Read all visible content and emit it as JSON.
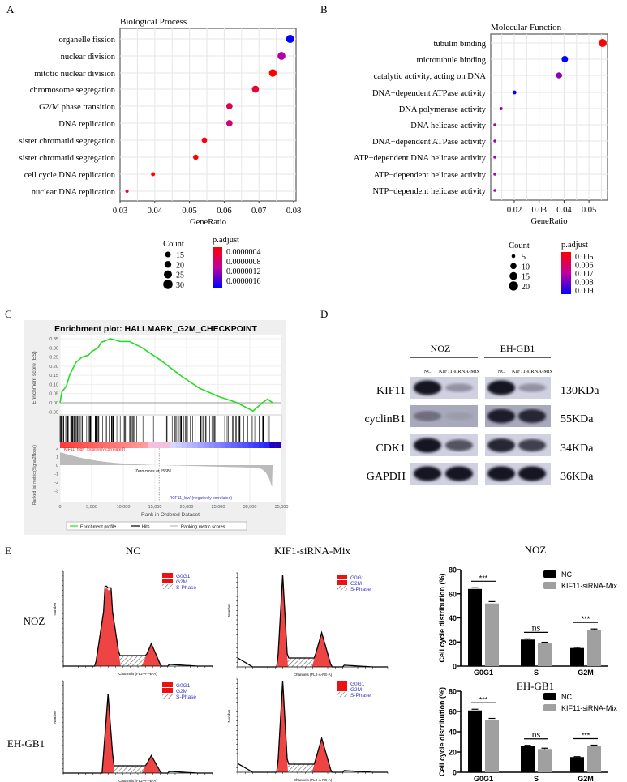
{
  "panel_labels": {
    "a": "A",
    "b": "B",
    "c": "C",
    "d": "D",
    "e": "E"
  },
  "chart_data": [
    {
      "id": "A",
      "type": "scatter",
      "title": "Biological Process",
      "xlabel": "GeneRatio",
      "xlim": [
        0.03,
        0.08
      ],
      "xticks": [
        "0.03",
        "0.04",
        "0.05",
        "0.06",
        "0.07",
        "0.08"
      ],
      "grid": true,
      "terms": [
        "organelle fission",
        "nuclear division",
        "mitotic nuclear division",
        "chromosome segregation",
        "G2/M phase transition",
        "DNA replication",
        "sister chromatid segregation",
        "sister chromatid segregation",
        "cell cycle DNA replication",
        "nuclear DNA replication"
      ],
      "gene_ratio": [
        0.079,
        0.0765,
        0.074,
        0.069,
        0.0615,
        0.0615,
        0.0543,
        0.0518,
        0.0395,
        0.032
      ],
      "count": [
        31,
        30,
        29,
        27,
        24,
        24,
        21,
        20,
        15,
        12
      ],
      "p_adjust": [
        1.6e-06,
        1e-06,
        3e-07,
        5e-07,
        6e-07,
        8e-07,
        4e-07,
        3e-07,
        3e-07,
        6e-07
      ],
      "size_legend": {
        "title": "Count",
        "values": [
          "15",
          "20",
          "25",
          "30"
        ]
      },
      "color_legend": {
        "title": "p.adjust",
        "labels": [
          "0.0000004",
          "0.0000008",
          "0.0000012",
          "0.0000016"
        ],
        "low_color": "#ff0000",
        "mid_color": "#c000a0",
        "high_color": "#0000ff"
      }
    },
    {
      "id": "B",
      "type": "scatter",
      "title": "Molecular Function",
      "xlabel": "GeneRatio",
      "xticks": [
        "0.02",
        "0.03",
        "0.04",
        "0.05"
      ],
      "grid": true,
      "terms": [
        "tubulin binding",
        "microtubule binding",
        "catalytic activity, acting on DNA",
        "DNA−dependent ATPase activity",
        "DNA polymerase activity",
        "DNA helicase activity",
        "DNA−dependent ATPase activity",
        "ATP−dependent DNA helicase activity",
        "ATP−dependent helicase activity",
        "NTP−dependent helicase activity"
      ],
      "gene_ratio": [
        0.0555,
        0.0403,
        0.038,
        0.0201,
        0.0147,
        0.0122,
        0.0122,
        0.0122,
        0.0122,
        0.0122
      ],
      "count": [
        20,
        15,
        14,
        7,
        5,
        4,
        4,
        4,
        4,
        4
      ],
      "p_adjust": [
        0.0045,
        0.0092,
        0.0075,
        0.0092,
        0.0072,
        0.0072,
        0.0072,
        0.0072,
        0.0072,
        0.0072
      ],
      "size_legend": {
        "title": "Count",
        "values": [
          "5",
          "10",
          "15",
          "20"
        ]
      },
      "color_legend": {
        "title": "p.adjust",
        "labels": [
          "0.005",
          "0.006",
          "0.007",
          "0.008",
          "0.009"
        ],
        "low_color": "#ff0000",
        "mid_color": "#c000a0",
        "high_color": "#0000ff"
      }
    },
    {
      "id": "C",
      "type": "line",
      "title": "Enrichment plot: HALLMARK_G2M_CHECKPOINT",
      "ylabel": "Enrichment score (ES)",
      "ylabel2": "Ranked list metric (Signal2Noise)",
      "xlabel": "Rank in Ordered Dataset",
      "xlim": [
        0,
        35000
      ],
      "ylim": [
        -0.05,
        0.35
      ],
      "yticks": [
        "0.35",
        "0.30",
        "0.25",
        "0.20",
        "0.15",
        "0.10",
        "0.05",
        "0.00",
        "-0.05"
      ],
      "y2ticks": [
        "2",
        "1",
        "0",
        "-1",
        "-2",
        "-3"
      ],
      "xticks": [
        "0",
        "5,000",
        "10,000",
        "15,000",
        "20,000",
        "25,000",
        "30,000",
        "35,000"
      ],
      "es_curve": [
        [
          0,
          0
        ],
        [
          300,
          0.06
        ],
        [
          1000,
          0.09
        ],
        [
          1500,
          0.15
        ],
        [
          2500,
          0.22
        ],
        [
          3500,
          0.25
        ],
        [
          4500,
          0.26
        ],
        [
          5000,
          0.28
        ],
        [
          6000,
          0.3
        ],
        [
          6500,
          0.33
        ],
        [
          8000,
          0.35
        ],
        [
          9500,
          0.335
        ],
        [
          11000,
          0.335
        ],
        [
          13000,
          0.3
        ],
        [
          16000,
          0.23
        ],
        [
          19000,
          0.15
        ],
        [
          22000,
          0.08
        ],
        [
          25000,
          0.035
        ],
        [
          28000,
          0.0
        ],
        [
          30500,
          -0.045
        ],
        [
          32000,
          0.0
        ],
        [
          32800,
          0.02
        ],
        [
          33600,
          0.0
        ]
      ],
      "high_label": "'KIF11_high' (positively correlated)",
      "low_label": "'KIF11_low' (negatively correlated)",
      "zero_cross_label": "Zero cross at 15681",
      "zero_cross": 15681,
      "series_colors": {
        "es": "#22dd22",
        "hits": "#000000",
        "metric": "#bbbbbb"
      },
      "legend": [
        "Enrichment profile",
        "Hits",
        "Ranking metric scores"
      ]
    },
    {
      "id": "E-NOZ",
      "type": "bar",
      "title": "NOZ",
      "ylabel": "Cell cycle distribution (%)",
      "ylim": [
        0,
        80
      ],
      "yticks": [
        "0",
        "20",
        "40",
        "60",
        "80"
      ],
      "categories": [
        "G0G1",
        "S",
        "G2M"
      ],
      "series": [
        {
          "name": "NC",
          "values": [
            64,
            22,
            15
          ],
          "errors": [
            1,
            0.6,
            0.6
          ],
          "color": "#000000"
        },
        {
          "name": "KIF11-siRNA-Mix",
          "values": [
            52,
            19,
            30
          ],
          "errors": [
            1.5,
            0.8,
            0.8
          ],
          "color": "#a0a0a0"
        }
      ],
      "significance": [
        "***",
        "ns",
        "***"
      ]
    },
    {
      "id": "E-EH-GB1",
      "type": "bar",
      "title": "EH-GB1",
      "ylabel": "Cell cycle distribution (%)",
      "ylim": [
        0,
        80
      ],
      "yticks": [
        "0",
        "20",
        "40",
        "60",
        "80"
      ],
      "categories": [
        "G0G1",
        "S",
        "G2M"
      ],
      "series": [
        {
          "name": "NC",
          "values": [
            61,
            26,
            15
          ],
          "errors": [
            1.2,
            0.6,
            0.4
          ],
          "color": "#000000"
        },
        {
          "name": "KIF11-siRNA-Mix",
          "values": [
            52,
            23,
            26
          ],
          "errors": [
            1.2,
            0.8,
            0.8
          ],
          "color": "#a0a0a0"
        }
      ],
      "significance": [
        "***",
        "ns",
        "***"
      ]
    }
  ],
  "western_blot": {
    "groups": [
      "NOZ",
      "EH-GB1"
    ],
    "lanes": [
      "NC",
      "KIF11-siRNA-Mix",
      "NC",
      "KIF11-siRNA-Mix"
    ],
    "proteins": [
      {
        "name": "KIF11",
        "size": "130KDa",
        "band_intensity": [
          1,
          0.3,
          1,
          0.3
        ]
      },
      {
        "name": "cyclinB1",
        "size": "55KDa",
        "band_intensity": [
          0.5,
          0.25,
          0.95,
          0.9
        ]
      },
      {
        "name": "CDK1",
        "size": "34KDa",
        "band_intensity": [
          1,
          0.65,
          0.9,
          0.75
        ]
      },
      {
        "name": "GAPDH",
        "size": "36KDa",
        "band_intensity": [
          1,
          1,
          1,
          1
        ]
      }
    ]
  },
  "flow_cytometry": {
    "columns": [
      "NC",
      "KIF1-siRNA-Mix"
    ],
    "rows": [
      "NOZ",
      "EH-GB1"
    ],
    "xlabel": "Channels (FL2-A-PE-A)",
    "ylabel": "Number",
    "legend": [
      "G0G1",
      "G2M",
      "S-Phase"
    ],
    "colors": {
      "phase_fill": "#ee2222",
      "legend_text": "#3333bb"
    },
    "histograms": [
      {
        "row": "NOZ",
        "column": "NC",
        "g0g1_peak": [
          60,
          560
        ],
        "g0g1_width": 12,
        "g2m_peak": [
          118,
          150
        ],
        "s_level": 70
      },
      {
        "row": "NOZ",
        "column": "KIF1-siRNA-Mix",
        "g0g1_peak": [
          60,
          620
        ],
        "g0g1_width": 7,
        "g2m_peak": [
          112,
          230
        ],
        "s_level": 60
      },
      {
        "row": "EH-GB1",
        "column": "NC",
        "g0g1_peak": [
          60,
          540
        ],
        "g0g1_width": 8,
        "g2m_peak": [
          118,
          120
        ],
        "s_level": 50
      },
      {
        "row": "EH-GB1",
        "column": "KIF1-siRNA-Mix",
        "g0g1_peak": [
          60,
          620
        ],
        "g0g1_width": 7,
        "g2m_peak": [
          112,
          230
        ],
        "s_level": 55
      }
    ]
  }
}
